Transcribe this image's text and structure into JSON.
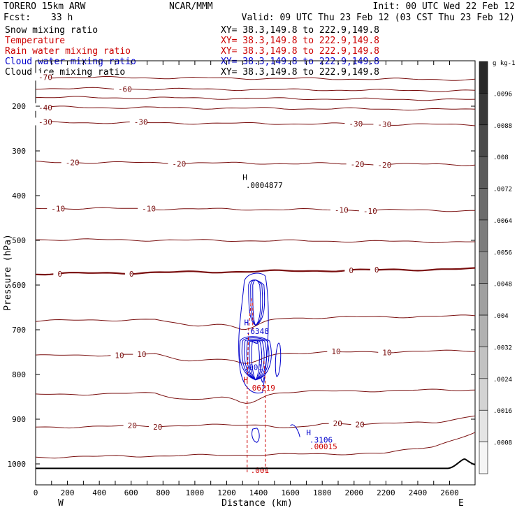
{
  "header": {
    "model": "TORERO  15km ARW",
    "org": "NCAR/MMM",
    "init": "Init: 00 UTC Wed 22 Feb 12",
    "fcst_label": "Fcst:",
    "fcst_value": "33 h",
    "valid": "Valid: 09 UTC Thu 23 Feb 12 (03 CST Thu 23 Feb 12)"
  },
  "fields": [
    {
      "name": "Snow mixing ratio",
      "xy": "XY=  38.3,149.8 to 222.9,149.8",
      "color": "#000000"
    },
    {
      "name": "Temperature",
      "xy": "XY=  38.3,149.8 to 222.9,149.8",
      "color": "#cc0000"
    },
    {
      "name": "Rain water mixing ratio",
      "xy": "XY=  38.3,149.8 to 222.9,149.8",
      "color": "#cc0000"
    },
    {
      "name": "Cloud water mixing ratio",
      "xy": "XY=  38.3,149.8 to 222.9,149.8",
      "color": "#0000cc"
    },
    {
      "name": "Cloud ice mixing ratio",
      "xy": "XY=  38.3,149.8 to 222.9,149.8",
      "color": "#000000"
    }
  ],
  "chart_data": {
    "type": "cross-section contour",
    "xlabel": "Distance (km)",
    "ylabel": "Pressure (hPa)",
    "xlim": [
      0,
      2760
    ],
    "ylim": [
      1080,
      125
    ],
    "x_ticks": [
      0,
      100,
      200,
      300,
      400,
      500,
      600,
      700,
      800,
      900,
      1000,
      1100,
      1200,
      1300,
      1400,
      1500,
      1600,
      1700,
      1800,
      1900,
      2000,
      2100,
      2200,
      2300,
      2400,
      2500,
      2600
    ],
    "x_tick_labels": [
      "0",
      "200",
      "400",
      "600",
      "800",
      "1000",
      "1200",
      "1400",
      "1600",
      "1800",
      "2000",
      "2200",
      "2400",
      "2600"
    ],
    "y_ticks": [
      200,
      300,
      400,
      500,
      600,
      700,
      800,
      900,
      1000
    ],
    "west_label": "W",
    "east_label": "E",
    "temperature_isotherms": [
      {
        "temp": -70,
        "p": 135,
        "labels": [
          [
            "-70",
            0
          ]
        ]
      },
      {
        "temp": -60,
        "p": 160,
        "labels": [
          [
            "-60",
            500
          ]
        ]
      },
      {
        "temp": -50,
        "p": 180,
        "labels": []
      },
      {
        "temp": -40,
        "p": 202,
        "labels": [
          [
            "-40",
            0
          ]
        ]
      },
      {
        "temp": -30,
        "p": 236,
        "labels": [
          [
            "-30",
            0
          ],
          [
            "-30",
            600
          ],
          [
            "-30",
            1950
          ],
          [
            "-30",
            2130
          ]
        ]
      },
      {
        "temp": -20,
        "p": 325,
        "labels": [
          [
            "-20",
            170
          ],
          [
            "-20",
            840
          ],
          [
            "-20",
            1960
          ],
          [
            "-20",
            2130
          ]
        ]
      },
      {
        "temp": -10,
        "p": 428,
        "labels": [
          [
            "-10",
            80
          ],
          [
            "-10",
            650
          ],
          [
            "-10",
            1860
          ],
          [
            "-10",
            2040
          ]
        ]
      },
      {
        "temp": -5,
        "p": 498,
        "labels": []
      },
      {
        "temp": 0,
        "p": 575,
        "labels": [
          [
            "0",
            120
          ],
          [
            "0",
            570
          ],
          [
            "0",
            1950
          ],
          [
            "0",
            2110
          ]
        ],
        "bold": true
      },
      {
        "temp": 5,
        "p": 680,
        "labels": []
      },
      {
        "temp": 10,
        "p": 758,
        "labels": [
          [
            "10",
            480
          ],
          [
            "10",
            620
          ],
          [
            "10",
            1840
          ],
          [
            "10",
            2160
          ]
        ]
      },
      {
        "temp": 15,
        "p": 845,
        "labels": []
      },
      {
        "temp": 20,
        "p": 918,
        "labels": [
          [
            "20",
            560
          ],
          [
            "20",
            720
          ],
          [
            "20",
            1850
          ],
          [
            "20",
            1990
          ]
        ]
      },
      {
        "temp": 25,
        "p": 985,
        "labels": []
      }
    ],
    "annotations": [
      {
        "text": "H",
        "x": 1300,
        "p": 365,
        "color": "#000000"
      },
      {
        "text": ".0004877",
        "x": 1320,
        "p": 383,
        "color": "#000000"
      },
      {
        "text": "H",
        "x": 1310,
        "p": 690,
        "color": "#0000cc"
      },
      {
        "text": ".6348",
        "x": 1320,
        "p": 709,
        "color": "#0000cc"
      },
      {
        "text": ".001",
        "x": 1310,
        "p": 790,
        "color": "#0000cc"
      },
      {
        "text": "H",
        "x": 1305,
        "p": 818,
        "color": "#cc0000"
      },
      {
        "text": "V",
        "x": 1410,
        "p": 818,
        "color": "#0000cc"
      },
      {
        "text": ".06219",
        "x": 1330,
        "p": 836,
        "color": "#cc0000"
      },
      {
        "text": "H",
        "x": 1700,
        "p": 936,
        "color": "#0000cc"
      },
      {
        "text": ".3106",
        "x": 1720,
        "p": 952,
        "color": "#0000cc"
      },
      {
        "text": ".00015",
        "x": 1720,
        "p": 967,
        "color": "#cc0000"
      },
      {
        "text": ".001",
        "x": 1350,
        "p": 1020,
        "color": "#cc0000"
      }
    ],
    "colorbar": {
      "unit": "g kg-1",
      "labels": [
        ".0096",
        ".0088",
        ".008",
        ".0072",
        ".0064",
        ".0056",
        ".0048",
        ".004",
        ".0032",
        ".0024",
        ".0016",
        ".0008"
      ]
    }
  }
}
